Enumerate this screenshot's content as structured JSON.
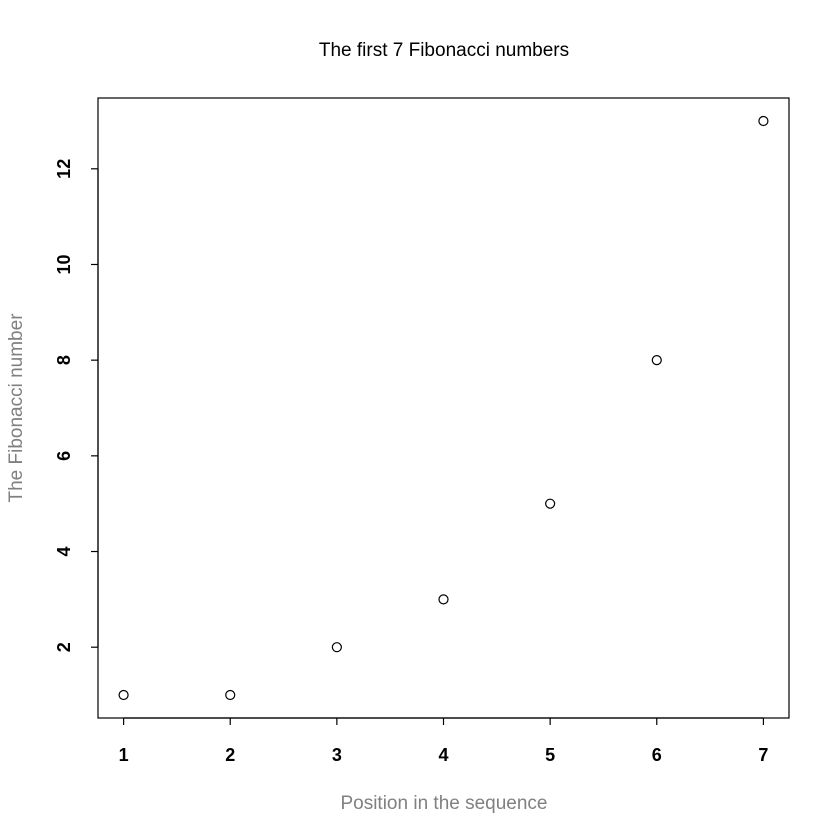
{
  "chart_data": {
    "type": "scatter",
    "title": "The first 7 Fibonacci numbers",
    "xlabel": "Position in the sequence",
    "ylabel": "The Fibonacci number",
    "x": [
      1,
      2,
      3,
      4,
      5,
      6,
      7
    ],
    "y": [
      1,
      1,
      2,
      3,
      5,
      8,
      13
    ],
    "xlim": [
      0.76,
      7.24
    ],
    "ylim": [
      0.52,
      13.48
    ],
    "xticks": [
      1,
      2,
      3,
      4,
      5,
      6,
      7
    ],
    "yticks": [
      2,
      4,
      6,
      8,
      10,
      12
    ],
    "grid": false,
    "marker": "open-circle",
    "colors": {
      "points": "#000000",
      "axis_labels": "#808080",
      "frame": "#000000"
    }
  }
}
